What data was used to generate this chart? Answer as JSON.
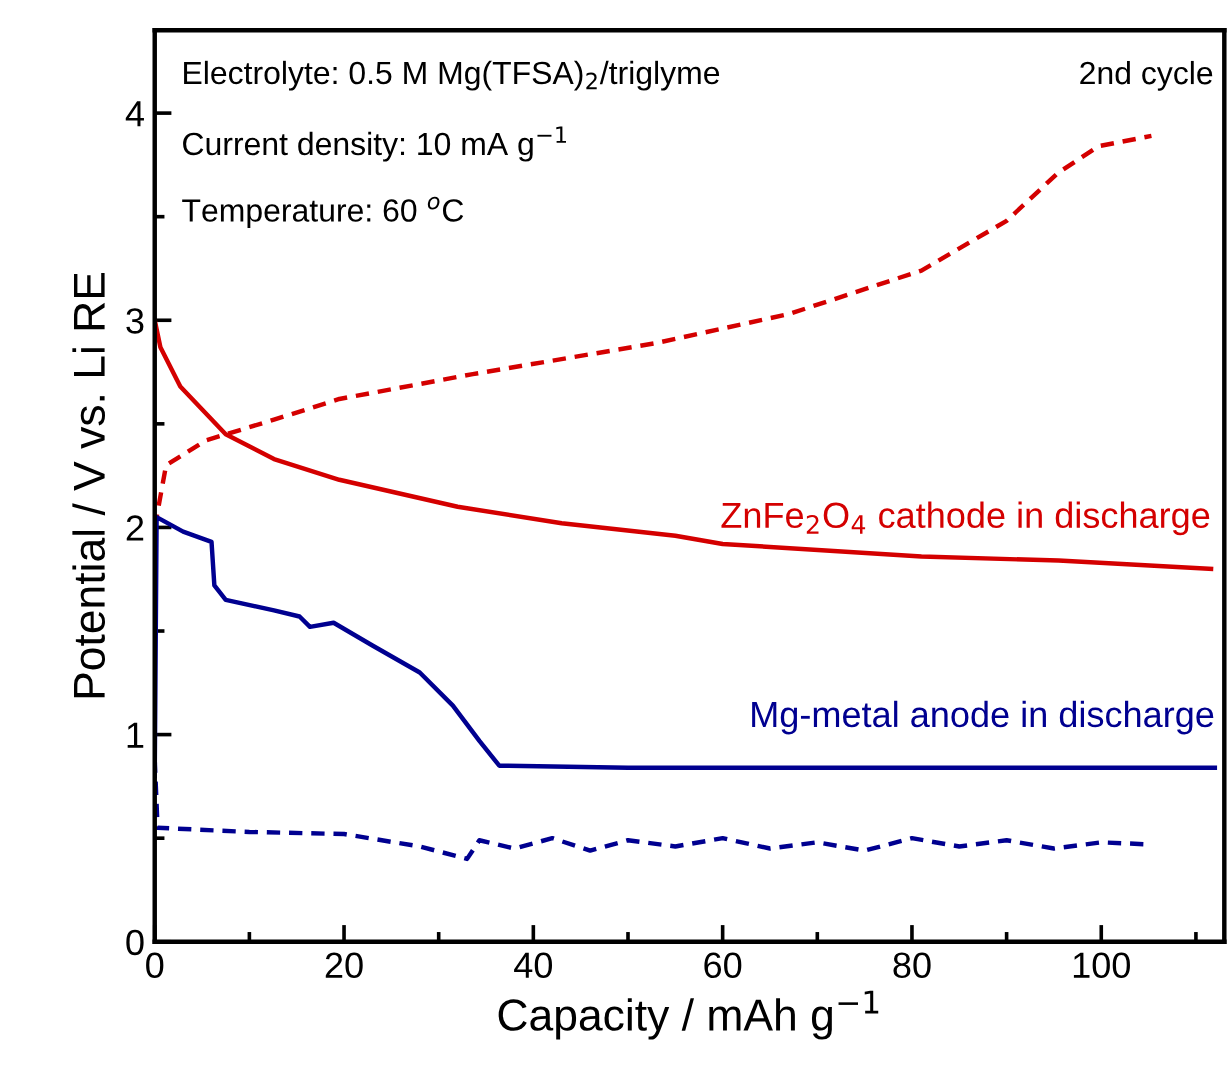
{
  "chart_data": {
    "type": "line",
    "xlabel": "Capacity / mAh g$^{−1}$",
    "ylabel": "Potential / V vs. Li RE",
    "xlim": [
      0,
      113
    ],
    "ylim": [
      0,
      4.4
    ],
    "xticks": [
      0,
      {
        "value": 10,
        "label": null
      },
      20,
      {
        "value": 30,
        "label": null
      },
      40,
      {
        "value": 50,
        "label": null
      },
      60,
      {
        "value": 70,
        "label": null
      },
      80,
      {
        "value": 90,
        "label": null
      },
      100,
      {
        "value": 110,
        "label": null
      }
    ],
    "yticks": [
      0,
      {
        "value": 0.5,
        "label": null
      },
      1,
      {
        "value": 1.5,
        "label": null
      },
      2,
      {
        "value": 2.5,
        "label": null
      },
      3,
      {
        "value": 3.5,
        "label": null
      },
      4
    ],
    "grid": false,
    "marker": "none",
    "series": [
      {
        "name": "ZnFe$_{2}$O$_{4}$ cathode in discharge",
        "color": "#d40000",
        "line_style": "solid",
        "x": [
          0,
          0.6,
          2.7,
          7.5,
          12.6,
          19.5,
          32,
          43,
          55,
          60,
          81,
          95.5,
          111.6
        ],
        "values": [
          3.0,
          2.87,
          2.68,
          2.45,
          2.33,
          2.23,
          2.1,
          2.02,
          1.96,
          1.92,
          1.86,
          1.84,
          1.8
        ]
      },
      {
        "color": "#d40000",
        "line_style": "dashed",
        "x": [
          0,
          1.2,
          5.4,
          12.6,
          19.5,
          33.6,
          53,
          67,
          81,
          90,
          95.4,
          99.7,
          105.3
        ],
        "values": [
          2.0,
          2.3,
          2.42,
          2.52,
          2.62,
          2.74,
          2.89,
          3.03,
          3.24,
          3.48,
          3.71,
          3.84,
          3.89
        ]
      },
      {
        "name": "Mg-metal anode in discharge",
        "color": "#000090",
        "line_style": "solid",
        "x": [
          0,
          0.2,
          3,
          6,
          6.3,
          7.5,
          12.6,
          15.3,
          16.4,
          18.9,
          23,
          28,
          31.5,
          34.3,
          36.4,
          50,
          70,
          90,
          112
        ],
        "values": [
          0.8,
          2.05,
          1.98,
          1.93,
          1.72,
          1.65,
          1.6,
          1.57,
          1.52,
          1.54,
          1.43,
          1.3,
          1.14,
          0.97,
          0.85,
          0.84,
          0.84,
          0.84,
          0.84
        ]
      },
      {
        "color": "#000090",
        "line_style": "dashed",
        "x": [
          0,
          0.3,
          10,
          20,
          28,
          33,
          34.3,
          38,
          42,
          46,
          50,
          55,
          60,
          65,
          70,
          75,
          80,
          85,
          90,
          95,
          100,
          105
        ],
        "values": [
          0.88,
          0.55,
          0.53,
          0.52,
          0.46,
          0.4,
          0.49,
          0.45,
          0.5,
          0.44,
          0.49,
          0.46,
          0.5,
          0.45,
          0.48,
          0.44,
          0.5,
          0.46,
          0.49,
          0.45,
          0.48,
          0.47
        ]
      }
    ],
    "annotations": [
      "Electrolyte: 0.5 M Mg(TFSA)$_{2}$/triglyme",
      "Current density: 10 mA g$^{−1}$",
      "Temperature: 60 $^{o}$C",
      "2nd cycle"
    ]
  }
}
